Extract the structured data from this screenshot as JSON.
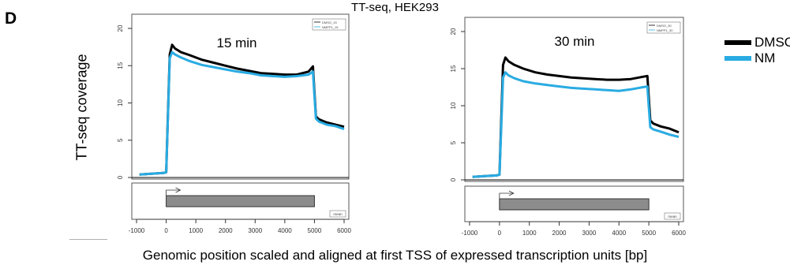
{
  "figure": {
    "panel_letter": "D",
    "title": "TT-seq, HEK293",
    "y_label": "TT-seq coverage",
    "x_label": "Genomic position scaled and aligned at first TSS of expressed transcription units [bp]"
  },
  "legend": [
    {
      "label": "DMSO",
      "color": "#000000"
    },
    {
      "label": "NM",
      "color": "#29abe2"
    }
  ],
  "chart_data": [
    {
      "type": "line",
      "panel_label": "15 min",
      "xlim": [
        -1000,
        6000
      ],
      "ylim": [
        0,
        20
      ],
      "x_ticks": [
        -1000,
        0,
        1000,
        2000,
        3000,
        4000,
        5000,
        6000
      ],
      "y_ticks": [
        0,
        5,
        10,
        15,
        20
      ],
      "inset_legend": [
        "DMSO_15",
        "NMPP1_15"
      ],
      "gene_model_label": "mean",
      "series": [
        {
          "name": "DMSO",
          "color": "#000000",
          "x": [
            -900,
            -500,
            -100,
            0,
            60,
            120,
            200,
            300,
            500,
            800,
            1200,
            1600,
            2000,
            2400,
            2800,
            3200,
            3600,
            4000,
            4400,
            4800,
            4950,
            5000,
            5050,
            5150,
            5400,
            5700,
            6000
          ],
          "y": [
            0.4,
            0.5,
            0.6,
            0.7,
            8.5,
            16.5,
            17.8,
            17.3,
            16.8,
            16.4,
            15.8,
            15.4,
            15.0,
            14.6,
            14.3,
            14.0,
            13.9,
            13.8,
            13.8,
            14.2,
            14.9,
            11.5,
            8.2,
            7.8,
            7.4,
            7.1,
            6.8
          ]
        },
        {
          "name": "NM",
          "color": "#29abe2",
          "x": [
            -900,
            -500,
            -100,
            0,
            60,
            120,
            200,
            300,
            500,
            800,
            1200,
            1600,
            2000,
            2400,
            2800,
            3200,
            3600,
            4000,
            4400,
            4800,
            4950,
            5000,
            5050,
            5150,
            5400,
            5700,
            6000
          ],
          "y": [
            0.4,
            0.5,
            0.6,
            0.7,
            8.2,
            16.0,
            16.8,
            16.5,
            16.1,
            15.6,
            15.1,
            14.8,
            14.5,
            14.2,
            14.0,
            13.7,
            13.6,
            13.5,
            13.6,
            13.8,
            14.2,
            11.0,
            7.9,
            7.5,
            7.1,
            6.9,
            6.5
          ]
        }
      ]
    },
    {
      "type": "line",
      "panel_label": "30 min",
      "xlim": [
        -1000,
        6000
      ],
      "ylim": [
        0,
        20
      ],
      "x_ticks": [
        -1000,
        0,
        1000,
        2000,
        3000,
        4000,
        5000,
        6000
      ],
      "y_ticks": [
        0,
        5,
        10,
        15,
        20
      ],
      "inset_legend": [
        "DMSO_30",
        "NMPP1_30"
      ],
      "gene_model_label": "mean",
      "series": [
        {
          "name": "DMSO",
          "color": "#000000",
          "x": [
            -900,
            -500,
            -100,
            0,
            60,
            120,
            200,
            300,
            500,
            800,
            1200,
            1600,
            2000,
            2400,
            2800,
            3200,
            3600,
            4000,
            4400,
            4800,
            4950,
            5000,
            5050,
            5150,
            5400,
            5700,
            6000
          ],
          "y": [
            0.4,
            0.5,
            0.6,
            0.7,
            8.0,
            15.5,
            16.5,
            16.0,
            15.5,
            15.0,
            14.5,
            14.2,
            14.0,
            13.8,
            13.7,
            13.6,
            13.5,
            13.5,
            13.6,
            13.9,
            14.0,
            11.0,
            8.0,
            7.6,
            7.2,
            6.9,
            6.4
          ]
        },
        {
          "name": "NM",
          "color": "#29abe2",
          "x": [
            -900,
            -500,
            -100,
            0,
            60,
            120,
            200,
            300,
            500,
            800,
            1200,
            1600,
            2000,
            2400,
            2800,
            3200,
            3600,
            4000,
            4400,
            4800,
            4950,
            5000,
            5050,
            5150,
            5400,
            5700,
            6000
          ],
          "y": [
            0.4,
            0.5,
            0.6,
            0.7,
            7.0,
            13.8,
            14.5,
            14.1,
            13.7,
            13.3,
            13.0,
            12.8,
            12.6,
            12.4,
            12.3,
            12.2,
            12.1,
            12.0,
            12.2,
            12.5,
            12.6,
            9.8,
            7.1,
            6.8,
            6.5,
            6.1,
            5.8
          ]
        }
      ]
    }
  ]
}
